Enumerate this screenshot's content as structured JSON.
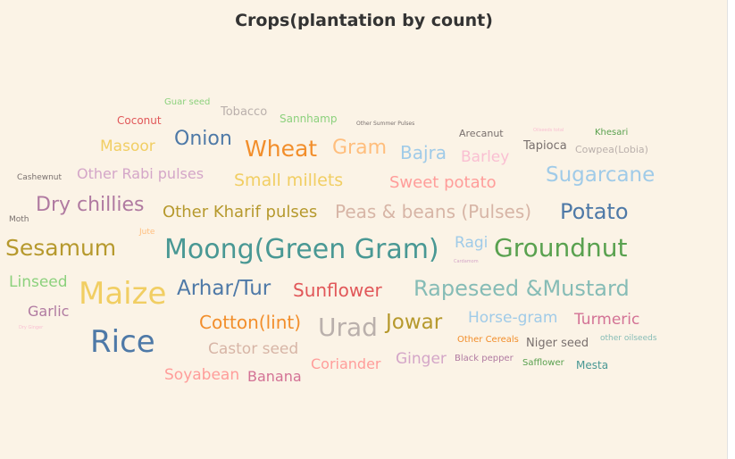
{
  "chart_data": {
    "type": "wordcloud",
    "title": "Crops(plantation by count)",
    "words": [
      {
        "text": "Guar seed",
        "weight": 10,
        "color": "#8cd17d"
      },
      {
        "text": "Tobacco",
        "weight": 13,
        "color": "#bab0ac"
      },
      {
        "text": "Sannhamp",
        "weight": 12,
        "color": "#8cd17d"
      },
      {
        "text": "Other Summer Pulses",
        "weight": 6,
        "color": "#79706e"
      },
      {
        "text": "Coconut",
        "weight": 12,
        "color": "#e15759"
      },
      {
        "text": "Arecanut",
        "weight": 11,
        "color": "#79706e"
      },
      {
        "text": "Oilseeds total",
        "weight": 5,
        "color": "#fabfd2"
      },
      {
        "text": "Khesari",
        "weight": 10,
        "color": "#59a14f"
      },
      {
        "text": "Masoor",
        "weight": 17,
        "color": "#f1ce63"
      },
      {
        "text": "Onion",
        "weight": 22,
        "color": "#4e79a7"
      },
      {
        "text": "Wheat",
        "weight": 25,
        "color": "#f28e2b"
      },
      {
        "text": "Gram",
        "weight": 22,
        "color": "#ffbe7d"
      },
      {
        "text": "Bajra",
        "weight": 20,
        "color": "#a0cbe8"
      },
      {
        "text": "Barley",
        "weight": 17,
        "color": "#fabfd2"
      },
      {
        "text": "Tapioca",
        "weight": 13,
        "color": "#79706e"
      },
      {
        "text": "Cowpea(Lobia)",
        "weight": 11,
        "color": "#bab0ac"
      },
      {
        "text": "Cashewnut",
        "weight": 9,
        "color": "#79706e"
      },
      {
        "text": "Other Rabi pulses",
        "weight": 16,
        "color": "#d4a6c8"
      },
      {
        "text": "Small millets",
        "weight": 19,
        "color": "#f1ce63"
      },
      {
        "text": "Sweet potato",
        "weight": 18,
        "color": "#ff9d9a"
      },
      {
        "text": "Sugarcane",
        "weight": 23,
        "color": "#a0cbe8"
      },
      {
        "text": "Dry chillies",
        "weight": 22,
        "color": "#b07aa1"
      },
      {
        "text": "Other Kharif pulses",
        "weight": 18,
        "color": "#b6992d"
      },
      {
        "text": "Peas & beans (Pulses)",
        "weight": 20,
        "color": "#d7b5a6"
      },
      {
        "text": "Potato",
        "weight": 24,
        "color": "#4e79a7"
      },
      {
        "text": "Moth",
        "weight": 9,
        "color": "#79706e"
      },
      {
        "text": "Jute",
        "weight": 9,
        "color": "#ffbe7d"
      },
      {
        "text": "Sesamum",
        "weight": 25,
        "color": "#b6992d"
      },
      {
        "text": "Moong(Green Gram)",
        "weight": 30,
        "color": "#499894"
      },
      {
        "text": "Ragi",
        "weight": 17,
        "color": "#a0cbe8"
      },
      {
        "text": "Cardamom",
        "weight": 5,
        "color": "#d4a6c8"
      },
      {
        "text": "Groundnut",
        "weight": 28,
        "color": "#59a14f"
      },
      {
        "text": "Linseed",
        "weight": 17,
        "color": "#8cd17d"
      },
      {
        "text": "Maize",
        "weight": 34,
        "color": "#f1ce63"
      },
      {
        "text": "Arhar/Tur",
        "weight": 23,
        "color": "#4e79a7"
      },
      {
        "text": "Sunflower",
        "weight": 20,
        "color": "#e15759"
      },
      {
        "text": "Rapeseed &Mustard",
        "weight": 24,
        "color": "#86bcb6"
      },
      {
        "text": "Garlic",
        "weight": 16,
        "color": "#b07aa1"
      },
      {
        "text": "Dry Ginger",
        "weight": 5,
        "color": "#fabfd2"
      },
      {
        "text": "Rice",
        "weight": 34,
        "color": "#4e79a7"
      },
      {
        "text": "Cotton(lint)",
        "weight": 20,
        "color": "#f28e2b"
      },
      {
        "text": "Urad",
        "weight": 28,
        "color": "#bab0ac"
      },
      {
        "text": "Jowar",
        "weight": 23,
        "color": "#b6992d"
      },
      {
        "text": "Horse-gram",
        "weight": 17,
        "color": "#a0cbe8"
      },
      {
        "text": "Turmeric",
        "weight": 17,
        "color": "#d37295"
      },
      {
        "text": "Other Cereals",
        "weight": 10,
        "color": "#f28e2b"
      },
      {
        "text": "Niger seed",
        "weight": 13,
        "color": "#79706e"
      },
      {
        "text": "other oilseeds",
        "weight": 9,
        "color": "#86bcb6"
      },
      {
        "text": "Castor seed",
        "weight": 17,
        "color": "#d7b5a6"
      },
      {
        "text": "Coriander",
        "weight": 16,
        "color": "#ff9d9a"
      },
      {
        "text": "Ginger",
        "weight": 17,
        "color": "#d4a6c8"
      },
      {
        "text": "Black pepper",
        "weight": 10,
        "color": "#b07aa1"
      },
      {
        "text": "Safflower",
        "weight": 10,
        "color": "#59a14f"
      },
      {
        "text": "Mesta",
        "weight": 12,
        "color": "#499894"
      },
      {
        "text": "Soyabean",
        "weight": 17,
        "color": "#ff9d9a"
      },
      {
        "text": "Banana",
        "weight": 16,
        "color": "#d37295"
      }
    ]
  }
}
